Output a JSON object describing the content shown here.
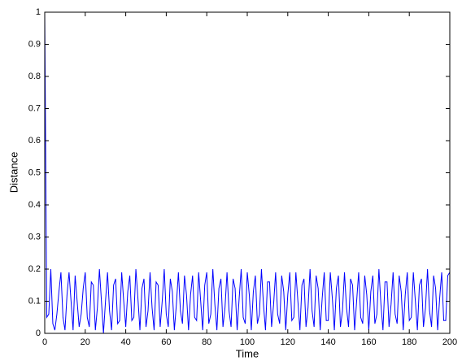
{
  "chart_data": {
    "type": "line",
    "xlabel": "Time",
    "ylabel": "Distance",
    "color": "#0000ff",
    "x": [
      0,
      1,
      2,
      3,
      4,
      5,
      6,
      7,
      8,
      9,
      10,
      11,
      12,
      13,
      14,
      15,
      16,
      17,
      18,
      19,
      20,
      21,
      22,
      23,
      24,
      25,
      26,
      27,
      28,
      29,
      30,
      31,
      32,
      33,
      34,
      35,
      36,
      37,
      38,
      39,
      40,
      41,
      42,
      43,
      44,
      45,
      46,
      47,
      48,
      49,
      50,
      51,
      52,
      53,
      54,
      55,
      56,
      57,
      58,
      59,
      60,
      61,
      62,
      63,
      64,
      65,
      66,
      67,
      68,
      69,
      70,
      71,
      72,
      73,
      74,
      75,
      76,
      77,
      78,
      79,
      80,
      81,
      82,
      83,
      84,
      85,
      86,
      87,
      88,
      89,
      90,
      91,
      92,
      93,
      94,
      95,
      96,
      97,
      98,
      99,
      100,
      101,
      102,
      103,
      104,
      105,
      106,
      107,
      108,
      109,
      110,
      111,
      112,
      113,
      114,
      115,
      116,
      117,
      118,
      119,
      120,
      121,
      122,
      123,
      124,
      125,
      126,
      127,
      128,
      129,
      130,
      131,
      132,
      133,
      134,
      135,
      136,
      137,
      138,
      139,
      140,
      141,
      142,
      143,
      144,
      145,
      146,
      147,
      148,
      149,
      150,
      151,
      152,
      153,
      154,
      155,
      156,
      157,
      158,
      159,
      160,
      161,
      162,
      163,
      164,
      165,
      166,
      167,
      168,
      169,
      170,
      171,
      172,
      173,
      174,
      175,
      176,
      177,
      178,
      179,
      180,
      181,
      182,
      183,
      184,
      185,
      186,
      187,
      188,
      189,
      190,
      191,
      192,
      193,
      194,
      195,
      196,
      197,
      198,
      199,
      200
    ],
    "values": [
      1,
      0.05,
      0.06,
      0.2,
      0.03,
      0.01,
      0.06,
      0.13,
      0.19,
      0.05,
      0.01,
      0.12,
      0.19,
      0.1,
      0.01,
      0.18,
      0.1,
      0.02,
      0.06,
      0.14,
      0.19,
      0.05,
      0.02,
      0.16,
      0.15,
      0.01,
      0.08,
      0.2,
      0.1,
      0,
      0.1,
      0.19,
      0.07,
      0.01,
      0.15,
      0.17,
      0.03,
      0.04,
      0.19,
      0.1,
      0.02,
      0.13,
      0.18,
      0.04,
      0.05,
      0.2,
      0.11,
      0.01,
      0.14,
      0.17,
      0.02,
      0.07,
      0.19,
      0.08,
      0.01,
      0.16,
      0.15,
      0.02,
      0.1,
      0.2,
      0.06,
      0.02,
      0.17,
      0.13,
      0.01,
      0.09,
      0.19,
      0.07,
      0.03,
      0.18,
      0.12,
      0.01,
      0.12,
      0.18,
      0.05,
      0.04,
      0.19,
      0.1,
      0.01,
      0.15,
      0.19,
      0.03,
      0.06,
      0.2,
      0.09,
      0.01,
      0.14,
      0.17,
      0.02,
      0.08,
      0.19,
      0.07,
      0.02,
      0.17,
      0.14,
      0.01,
      0.11,
      0.2,
      0.05,
      0.03,
      0.19,
      0.12,
      0.01,
      0.13,
      0.18,
      0.03,
      0.06,
      0.2,
      0.09,
      0.01,
      0.16,
      0.16,
      0.02,
      0.09,
      0.19,
      0.06,
      0.03,
      0.18,
      0.13,
      0.01,
      0.12,
      0.19,
      0.04,
      0.05,
      0.19,
      0.1,
      0.01,
      0.15,
      0.17,
      0.02,
      0.08,
      0.2,
      0.07,
      0.02,
      0.18,
      0.14,
      0.01,
      0.11,
      0.19,
      0.04,
      0.04,
      0.19,
      0.11,
      0.01,
      0.14,
      0.18,
      0.02,
      0.07,
      0.19,
      0.08,
      0.02,
      0.17,
      0.15,
      0.01,
      0.1,
      0.19,
      0.05,
      0.03,
      0.18,
      0.12,
      0.01,
      0.13,
      0.18,
      0.03,
      0.06,
      0.2,
      0.09,
      0.01,
      0.16,
      0.16,
      0.02,
      0.09,
      0.19,
      0.06,
      0.03,
      0.18,
      0.13,
      0.01,
      0.12,
      0.19,
      0.04,
      0.05,
      0.19,
      0.1,
      0.01,
      0.15,
      0.17,
      0.02,
      0.08,
      0.2,
      0.07,
      0.02,
      0.18,
      0.14,
      0.01,
      0.11,
      0.19,
      0.04,
      0.04,
      0.18,
      0.19
    ],
    "xlim": [
      0,
      200
    ],
    "xticks": [
      0,
      20,
      40,
      60,
      80,
      100,
      120,
      140,
      160,
      180,
      200
    ],
    "ylim": [
      0,
      1
    ],
    "yticks": [
      0,
      0.1,
      0.2,
      0.3,
      0.4,
      0.5,
      0.6,
      0.7,
      0.8,
      0.9,
      1
    ]
  }
}
